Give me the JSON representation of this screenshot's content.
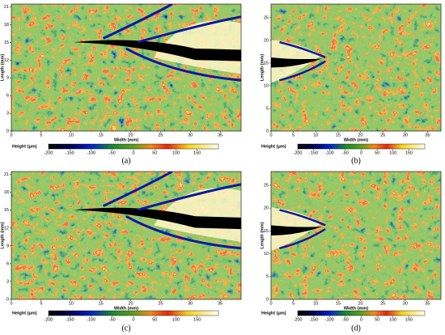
{
  "chart_data": [
    {
      "type": "heatmap",
      "label": "(a)",
      "xlabel": "Width (mm)",
      "ylabel": "Length (mm)",
      "xlim": [
        0,
        38.5
      ],
      "xticks": [
        0,
        5,
        10,
        15,
        20,
        25,
        30,
        35
      ],
      "ylim": [
        0,
        21.5
      ],
      "yticks": [
        0,
        3,
        6,
        9,
        12,
        15,
        18,
        21
      ],
      "colorbar": {
        "label": "Height (μm)",
        "lim": [
          -200,
          200
        ],
        "ticks": [
          -200,
          -150,
          -100,
          -50,
          0,
          50,
          100,
          150
        ]
      }
    },
    {
      "type": "heatmap",
      "label": "(b)",
      "xlabel": "Width (mm)",
      "ylabel": "Length (mm)",
      "xlim": [
        0,
        38
      ],
      "xticks": [
        0,
        5,
        10,
        15,
        20,
        25,
        30,
        35
      ],
      "ylim": [
        0,
        28
      ],
      "yticks": [
        0,
        5,
        10,
        15,
        20,
        25
      ],
      "colorbar": {
        "label": "Height (μm)",
        "lim": [
          -200,
          200
        ],
        "ticks": [
          -200,
          -150,
          -100,
          -50,
          0,
          50,
          100,
          150
        ]
      }
    },
    {
      "type": "heatmap",
      "label": "(c)",
      "xlabel": "Width (mm)",
      "ylabel": "Length (mm)",
      "xlim": [
        0,
        38.5
      ],
      "xticks": [
        0,
        5,
        10,
        15,
        20,
        25,
        30,
        35
      ],
      "ylim": [
        0,
        21.5
      ],
      "yticks": [
        0,
        3,
        6,
        9,
        12,
        15,
        18,
        21
      ],
      "colorbar": {
        "label": "Height (μm)",
        "lim": [
          -200,
          200
        ],
        "ticks": [
          -200,
          -150,
          -100,
          -50,
          0,
          50,
          100,
          150
        ]
      }
    },
    {
      "type": "heatmap",
      "label": "(d)",
      "xlabel": "Width (mm)",
      "ylabel": "Length (mm)",
      "xlim": [
        0,
        38
      ],
      "xticks": [
        0,
        5,
        10,
        15,
        20,
        25,
        30,
        35
      ],
      "ylim": [
        0,
        28
      ],
      "yticks": [
        0,
        5,
        10,
        15,
        20,
        25
      ],
      "colorbar": {
        "label": "Height (μm)",
        "lim": [
          -200,
          200
        ],
        "ticks": [
          -200,
          -150,
          -100,
          -50,
          0,
          50,
          100,
          150
        ]
      }
    }
  ]
}
